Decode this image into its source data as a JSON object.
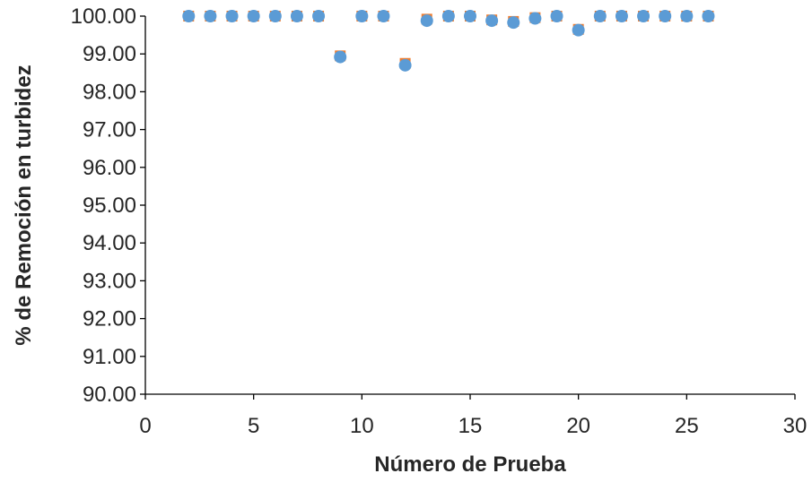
{
  "chart_data": {
    "type": "scatter",
    "title": "",
    "xlabel": "Número de Prueba",
    "ylabel": "% de Remoción en turbidez",
    "xlim": [
      0,
      30
    ],
    "ylim": [
      90,
      100
    ],
    "x_ticks": [
      "0",
      "5",
      "10",
      "15",
      "20",
      "25",
      "30"
    ],
    "y_ticks": [
      "90.00",
      "91.00",
      "92.00",
      "93.00",
      "94.00",
      "95.00",
      "96.00",
      "97.00",
      "98.00",
      "99.00",
      "100.00"
    ],
    "x_tick_values": [
      0,
      5,
      10,
      15,
      20,
      25,
      30
    ],
    "y_tick_values": [
      90,
      91,
      92,
      93,
      94,
      95,
      96,
      97,
      98,
      99,
      100
    ],
    "grid": false,
    "legend": "none",
    "series": [
      {
        "marker": "square",
        "color": "#ED7D31",
        "x": [
          2,
          3,
          4,
          5,
          6,
          7,
          8,
          9,
          10,
          11,
          12,
          13,
          14,
          15,
          16,
          17,
          18,
          19,
          20,
          21,
          22,
          23,
          24,
          25,
          26
        ],
        "y": [
          100.0,
          100.0,
          100.0,
          100.0,
          100.0,
          100.0,
          100.0,
          98.95,
          100.0,
          100.0,
          98.75,
          99.92,
          100.0,
          100.0,
          99.9,
          99.86,
          99.96,
          100.0,
          99.65,
          100.0,
          100.0,
          100.0,
          100.0,
          100.0,
          100.0
        ]
      },
      {
        "marker": "circle",
        "color": "#5B9BD5",
        "x": [
          2,
          3,
          4,
          5,
          6,
          7,
          8,
          9,
          10,
          11,
          12,
          13,
          14,
          15,
          16,
          17,
          18,
          19,
          20,
          21,
          22,
          23,
          24,
          25,
          26
        ],
        "y": [
          100.0,
          100.0,
          100.0,
          100.0,
          100.0,
          100.0,
          100.0,
          98.92,
          100.0,
          100.0,
          98.7,
          99.88,
          100.0,
          100.0,
          99.88,
          99.83,
          99.94,
          100.0,
          99.63,
          100.0,
          100.0,
          100.0,
          100.0,
          100.0,
          100.0
        ]
      }
    ]
  }
}
